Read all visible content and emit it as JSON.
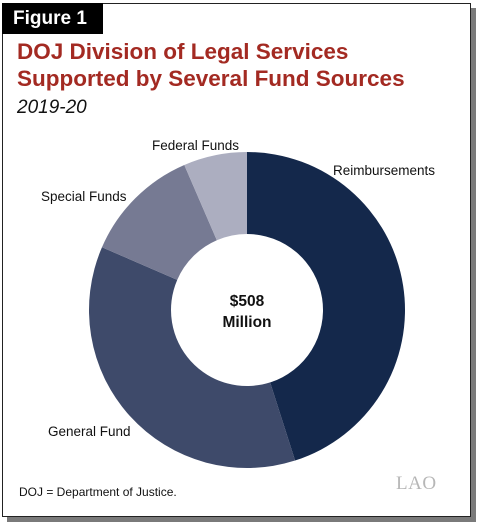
{
  "figure_label": "Figure 1",
  "title_line1": "DOJ Division of Legal Services",
  "title_line2": "Supported by Several Fund Sources",
  "subtitle": "2019-20",
  "center_label_line1": "$508",
  "center_label_line2": "Million",
  "footnote": "DOJ = Department of Justice.",
  "logo_text": "LAO",
  "chart_data": {
    "type": "pie",
    "donut": true,
    "total": 508,
    "unit": "million dollars",
    "title": "DOJ Division of Legal Services Supported by Several Fund Sources",
    "subtitle": "2019-20",
    "categories": [
      "Reimbursements",
      "General Fund",
      "Special Funds",
      "Federal Funds"
    ],
    "values": [
      229,
      185,
      61,
      33
    ],
    "colors": [
      "#14284b",
      "#3e4a6a",
      "#767a93",
      "#acaec0"
    ],
    "legend": "none (direct labels)"
  }
}
